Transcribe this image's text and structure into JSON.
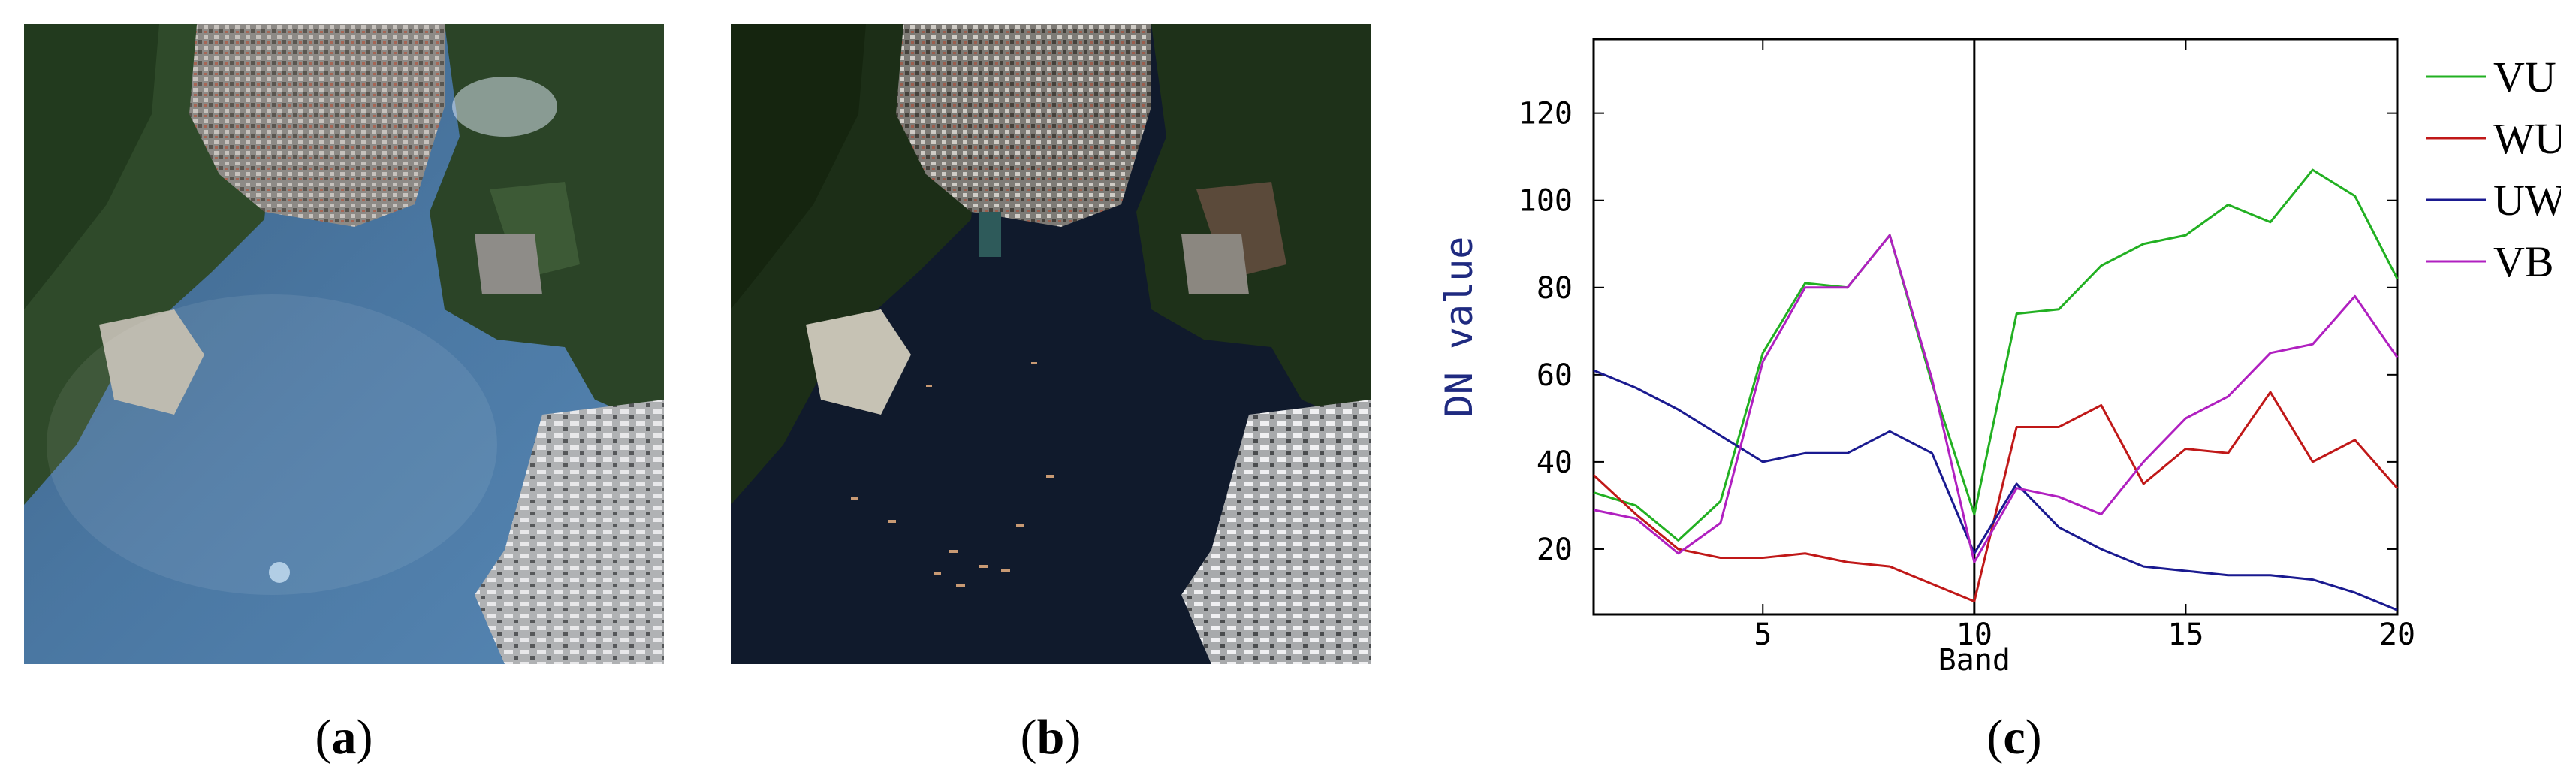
{
  "captions": {
    "a": "a",
    "b": "b",
    "c": "c"
  },
  "panels": [
    {
      "id": "a",
      "description_label": "satellite-image-hazy"
    },
    {
      "id": "b",
      "description_label": "satellite-image-clear"
    }
  ],
  "colors": {
    "VU": "#22b022",
    "WU": "#c01818",
    "UW": "#1a1a90",
    "VB": "#b020c0"
  },
  "chart_data": {
    "type": "line",
    "xlabel": "Band",
    "ylabel": "DN value",
    "xlim": [
      1,
      20
    ],
    "ylim": [
      5,
      137
    ],
    "xticks": [
      5,
      10,
      15,
      20
    ],
    "yticks": [
      20,
      40,
      60,
      80,
      100,
      120
    ],
    "vline_x": 10,
    "grid": false,
    "legend_position": "right",
    "x": [
      1,
      2,
      3,
      4,
      5,
      6,
      7,
      8,
      9,
      10,
      11,
      12,
      13,
      14,
      15,
      16,
      17,
      18,
      19,
      20
    ],
    "series": [
      {
        "name": "VU",
        "values": [
          33,
          30,
          22,
          31,
          65,
          81,
          80,
          92,
          58,
          28,
          74,
          75,
          85,
          90,
          92,
          99,
          95,
          107,
          101,
          82
        ]
      },
      {
        "name": "WU",
        "values": [
          37,
          28,
          20,
          18,
          18,
          19,
          17,
          16,
          12,
          8,
          48,
          48,
          53,
          35,
          43,
          42,
          56,
          40,
          45,
          34
        ]
      },
      {
        "name": "UW",
        "values": [
          61,
          57,
          52,
          46,
          40,
          42,
          42,
          47,
          42,
          19,
          35,
          25,
          20,
          16,
          15,
          14,
          14,
          13,
          10,
          6
        ]
      },
      {
        "name": "VB",
        "values": [
          29,
          27,
          19,
          26,
          63,
          80,
          80,
          92,
          59,
          17,
          34,
          32,
          28,
          40,
          50,
          55,
          65,
          67,
          78,
          64
        ]
      }
    ]
  }
}
